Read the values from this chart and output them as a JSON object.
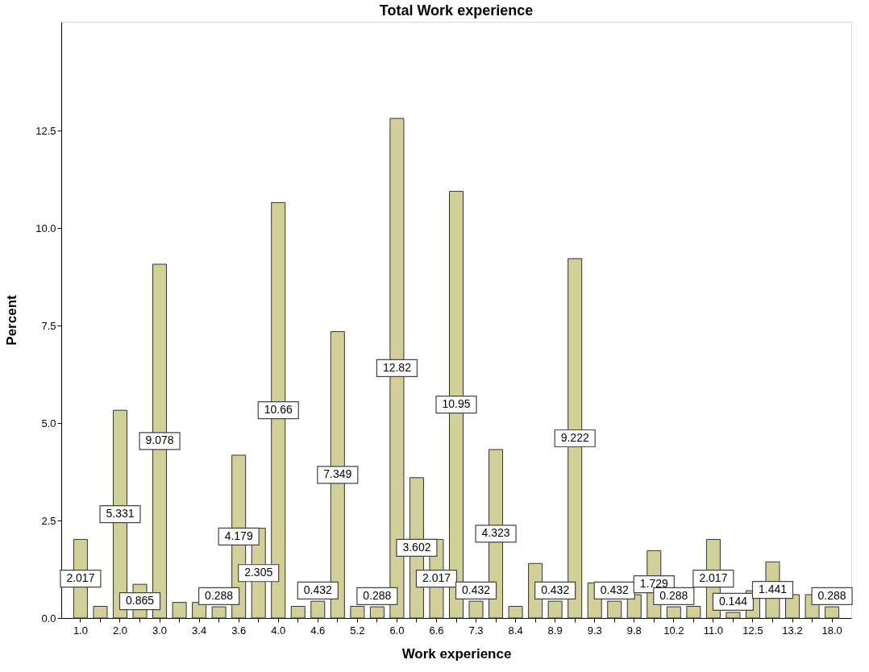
{
  "chart_data": {
    "type": "bar",
    "title": "Total Work experience",
    "xlabel": "Work experience",
    "ylabel": "Percent",
    "categories": [
      "1.0",
      null,
      "2.0",
      null,
      "3.0",
      null,
      "3.4",
      null,
      "3.6",
      null,
      "4.0",
      null,
      "4.6",
      null,
      "5.2",
      null,
      "6.0",
      null,
      "6.6",
      null,
      "7.3",
      null,
      "8.4",
      null,
      "8.9",
      null,
      "9.3",
      null,
      "9.8",
      null,
      "10.2",
      null,
      "11.0",
      null,
      "12.5",
      null,
      "13.2",
      null,
      "18.0"
    ],
    "values": [
      2.017,
      0.3,
      5.331,
      0.865,
      9.078,
      0.4,
      0.4,
      0.288,
      4.179,
      2.305,
      10.66,
      0.3,
      0.432,
      7.349,
      0.3,
      0.288,
      12.82,
      3.602,
      2.017,
      10.95,
      0.432,
      4.323,
      0.3,
      1.4,
      0.432,
      9.222,
      0.9,
      0.432,
      0.6,
      1.729,
      0.288,
      0.3,
      2.017,
      0.144,
      0.7,
      1.441,
      0.6,
      0.6,
      0.288
    ],
    "value_labels": [
      "2.017",
      null,
      "5.331",
      "0.865",
      "9.078",
      null,
      null,
      "0.288",
      "4.179",
      "2.305",
      "10.66",
      null,
      "0.432",
      "7.349",
      null,
      "0.288",
      "12.82",
      "3.602",
      "2.017",
      "10.95",
      "0.432",
      "4.323",
      null,
      null,
      "0.432",
      "9.222",
      null,
      "0.432",
      null,
      "1.729",
      "0.288",
      null,
      "2.017",
      "0.144",
      null,
      "1.441",
      null,
      null,
      "0.288"
    ],
    "color": "#d3cf98",
    "ylim": [
      0,
      15.3
    ],
    "yticks": [
      {
        "value": 0,
        "label": "0.0"
      },
      2.5,
      {
        "value": 5,
        "label": "5.0"
      },
      7.5,
      {
        "value": 10,
        "label": "10.0"
      },
      12.5
    ],
    "grid": false
  }
}
